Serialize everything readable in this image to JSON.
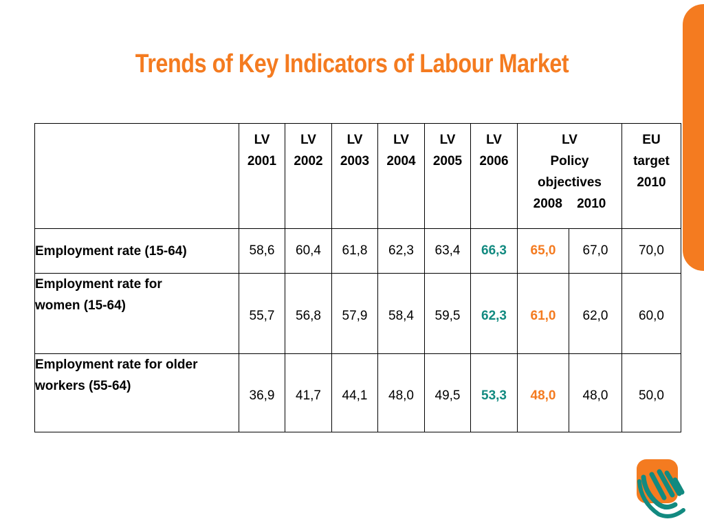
{
  "title": "Trends of Key Indicators of Labour Market",
  "table": {
    "headers": [
      {
        "line1": "LV",
        "line2": "2001"
      },
      {
        "line1": "LV",
        "line2": "2002"
      },
      {
        "line1": "LV",
        "line2": "2003"
      },
      {
        "line1": "LV",
        "line2": "2004"
      },
      {
        "line1": "LV",
        "line2": "2005"
      },
      {
        "line1": "LV",
        "line2": "2006"
      }
    ],
    "policy_header": {
      "line1": "LV",
      "line2": "Policy",
      "line3": "objectives",
      "year1": "2008",
      "year2": "2010"
    },
    "eu_header": {
      "line1": "EU",
      "line2": "target",
      "line3": "2010"
    },
    "rows": [
      {
        "label_line1": "Employment rate (15-64)",
        "label_line2": "",
        "values": [
          "58,6",
          "60,4",
          "61,8",
          "62,3",
          "63,4",
          "66,3",
          "65,0",
          "67,0",
          "70,0"
        ]
      },
      {
        "label_line1": "Employment rate for",
        "label_line2": "women (15-64)",
        "values": [
          "55,7",
          "56,8",
          "57,9",
          "58,4",
          "59,5",
          "62,3",
          "61,0",
          "62,0",
          "60,0"
        ]
      },
      {
        "label_line1": "Employment rate for older",
        "label_line2": "workers (55-64)",
        "values": [
          "36,9",
          "41,7",
          "44,1",
          "48,0",
          "49,5",
          "53,3",
          "48,0",
          "48,0",
          "50,0"
        ]
      }
    ]
  },
  "colors": {
    "accent_orange": "#f47b20",
    "highlight_teal": "#128a80"
  },
  "logo": {
    "icon": "hands-logo-icon"
  }
}
